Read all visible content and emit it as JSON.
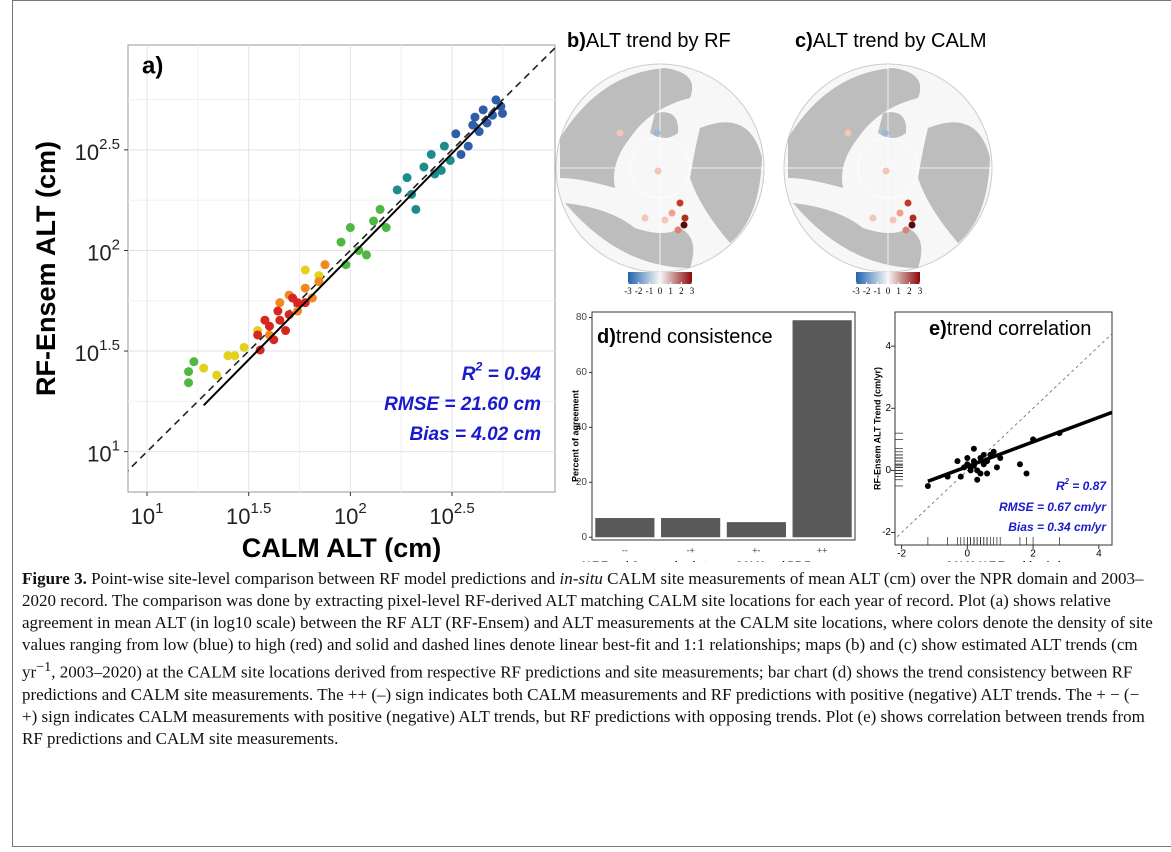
{
  "chart_data": [
    {
      "type": "scatter",
      "label": "a)",
      "x_label": "CALM ALT (cm)",
      "y_label": "RF-Ensem ALT (cm)",
      "x_log": true,
      "y_log": true,
      "grid": true,
      "xlim": [
        8.06,
        1015
      ],
      "ylim": [
        6.3,
        1050
      ],
      "xticks": [
        {
          "value": 10,
          "base": "10",
          "exponent": "1"
        },
        {
          "value": 31.62,
          "base": "10",
          "exponent": "1.5"
        },
        {
          "value": 100,
          "base": "10",
          "exponent": "2"
        },
        {
          "value": 316.2,
          "base": "10",
          "exponent": "2.5"
        }
      ],
      "yticks": [
        {
          "value": 10,
          "base": "10",
          "exponent": "1"
        },
        {
          "value": 31.62,
          "base": "10",
          "exponent": "1.5"
        },
        {
          "value": 100,
          "base": "10",
          "exponent": "2"
        },
        {
          "value": 316.2,
          "base": "10",
          "exponent": "2.5"
        }
      ],
      "series": [
        {
          "color": "#2f5ea8",
          "x": [
            330,
            400,
            450,
            500,
            520,
            380,
            430,
            550,
            350,
            470,
            560,
            410
          ],
          "y": [
            380,
            420,
            500,
            470,
            560,
            330,
            390,
            520,
            300,
            430,
            480,
            460
          ]
        },
        {
          "color": "#1f8c8c",
          "x": [
            170,
            200,
            230,
            260,
            290,
            310,
            190,
            250,
            210,
            280
          ],
          "y": [
            200,
            190,
            260,
            240,
            330,
            280,
            230,
            300,
            160,
            250
          ]
        },
        {
          "color": "#4fb843",
          "x": [
            90,
            110,
            130,
            150,
            100,
            120,
            140,
            16,
            16,
            17,
            95
          ],
          "y": [
            110,
            100,
            140,
            130,
            130,
            95,
            160,
            25,
            22,
            28,
            85
          ]
        },
        {
          "color": "#e3d11d",
          "x": [
            19,
            22,
            25,
            30,
            60,
            70,
            27,
            35
          ],
          "y": [
            26,
            24,
            30,
            33,
            80,
            75,
            30,
            40
          ]
        },
        {
          "color": "#f08a1e",
          "x": [
            45,
            55,
            60,
            50,
            70,
            40,
            65,
            75
          ],
          "y": [
            55,
            50,
            65,
            60,
            70,
            38,
            58,
            85
          ]
        },
        {
          "color": "#d7261e",
          "x": [
            35,
            40,
            45,
            50,
            55,
            38,
            48,
            42,
            52,
            60,
            36,
            44
          ],
          "y": [
            38,
            42,
            45,
            48,
            55,
            45,
            40,
            36,
            58,
            55,
            32,
            50
          ]
        }
      ],
      "fit_line": {
        "x": [
          19,
          560
        ],
        "y": [
          17,
          545
        ]
      },
      "r2": {
        "symbol": "R",
        "sup": "2",
        "text": " = 0.94"
      },
      "rmse": "RMSE = 21.60 cm",
      "bias": "Bias = 4.02 cm"
    },
    {
      "type": "map",
      "label": "b)",
      "title": "ALT trend by RF",
      "colorbar_lim": [
        -3,
        3
      ],
      "colorbar_ticks": [
        -3,
        -2,
        -1,
        0,
        1,
        2,
        3
      ]
    },
    {
      "type": "map",
      "label": "c)",
      "title": "ALT trend by CALM",
      "colorbar_lim": [
        -3,
        3
      ],
      "colorbar_ticks": [
        -3,
        -2,
        -1,
        0,
        1,
        2,
        3
      ]
    },
    {
      "type": "bar",
      "label": "d)",
      "title": "trend consistence",
      "y_label": "Percent of agreement",
      "x_label": "ALT Trend Comparsion between CALM and RF-En",
      "categories": [
        "--",
        "-+",
        "+-",
        "++"
      ],
      "values": [
        7,
        7,
        5.5,
        79
      ],
      "color": "#595959",
      "ylim": [
        -1,
        82
      ],
      "yticks": [
        0,
        20,
        40,
        60,
        80
      ]
    },
    {
      "type": "scatter",
      "label": "e)",
      "title": "trend correlation",
      "x_label": "CALM ALT Trend (cm/yr)",
      "y_label": "RF-Ensem ALT Trend (cm/yr)",
      "xlim": [
        -2.2,
        4.4
      ],
      "ylim": [
        -2.4,
        5.1
      ],
      "xticks": [
        -2,
        0,
        2,
        4
      ],
      "yticks": [
        -2,
        0,
        2,
        4
      ],
      "series": [
        {
          "color": "#000000",
          "x": [
            -1.2,
            -0.6,
            -0.3,
            -0.1,
            0,
            0.1,
            0.2,
            0.3,
            0.4,
            0.5,
            0.6,
            0.7,
            0.8,
            1.0,
            0.2,
            0.4,
            0.9,
            1.6,
            1.8,
            2.0,
            2.8,
            0.1,
            0.3,
            -0.2,
            0.5,
            0.6,
            0.0,
            0.2
          ],
          "y": [
            -0.5,
            -0.2,
            0.3,
            0.1,
            0.2,
            0,
            0.3,
            -0.3,
            0.4,
            0.2,
            0.3,
            0.5,
            0.6,
            0.4,
            0.7,
            -0.1,
            0.1,
            0.2,
            -0.1,
            1.0,
            1.2,
            0.1,
            0.0,
            -0.2,
            0.5,
            -0.1,
            0.4,
            0.15
          ]
        }
      ],
      "fit_line": {
        "x": [
          -1.2,
          4.4
        ],
        "y": [
          -0.35,
          1.87
        ]
      },
      "r2": {
        "symbol": "R",
        "sup": "2",
        "text": " = 0.87"
      },
      "rmse": "RMSE = 0.67 cm/yr",
      "bias": "Bias = 0.34 cm/yr"
    }
  ],
  "caption": {
    "label": "Figure 3.",
    "text1": " Point-wise site-level comparison between RF model predictions and ",
    "italic": "in-situ",
    "text2": " CALM site measurements of mean ALT (cm) over the NPR domain and 2003–2020 record. The comparison was done by extracting pixel-level RF-derived ALT matching CALM site locations for each year of record. Plot (a) shows relative agreement in mean ALT (in log10 scale) between the RF ALT (RF-Ensem) and ALT measurements at the CALM site locations, where colors denote the density of site values ranging from low (blue) to high (red) and solid and dashed lines denote linear best-fit and 1:1 relationships; maps (b) and (c) show estimated ALT trends (cm yr",
    "sup": "−1",
    "text3": ", 2003–2020) at the CALM site locations derived from respective RF predictions and site measurements; bar chart (d) shows the trend consistency between RF predictions and CALM site measurements. The ++ (–) sign indicates both CALM measurements and RF predictions with positive (negative) ALT trends. The + − (− +) sign indicates CALM measurements with positive (negative) ALT trends, but RF predictions with opposing trends. Plot (e) shows correlation between trends from RF predictions and CALM site measurements."
  }
}
